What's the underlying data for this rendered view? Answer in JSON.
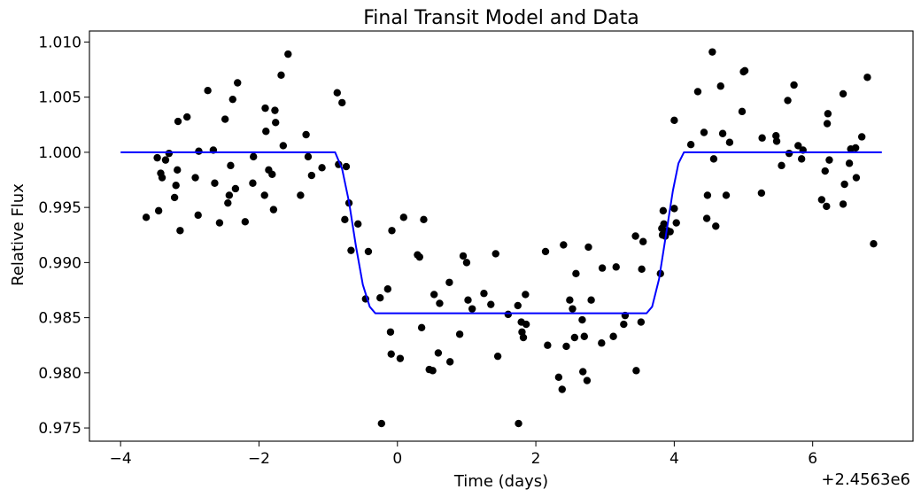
{
  "chart_data": {
    "type": "scatter",
    "title": "Final Transit Model and Data",
    "xlabel": "Time (days)",
    "ylabel": "Relative Flux",
    "offset_label": "+2.4563e6",
    "xlim": [
      -4.45,
      7.45
    ],
    "ylim": [
      0.9738,
      1.011
    ],
    "xticks": [
      -4,
      -2,
      0,
      2,
      4,
      6
    ],
    "xtick_labels": [
      "−4",
      "−2",
      "0",
      "2",
      "4",
      "6"
    ],
    "yticks": [
      0.975,
      0.98,
      0.985,
      0.99,
      0.995,
      1.0,
      1.005,
      1.01
    ],
    "ytick_labels": [
      "0.975",
      "0.980",
      "0.985",
      "0.990",
      "0.995",
      "1.000",
      "1.005",
      "1.010"
    ],
    "grid": false,
    "series": [
      {
        "type": "scatter",
        "color": "#000000",
        "points": [
          [
            -3.63,
            0.9941
          ],
          [
            -3.47,
            0.9995
          ],
          [
            -3.45,
            0.9947
          ],
          [
            -3.42,
            0.9981
          ],
          [
            -3.4,
            0.9977
          ],
          [
            -3.35,
            0.9993
          ],
          [
            -3.3,
            0.9999
          ],
          [
            -3.22,
            0.9959
          ],
          [
            -3.2,
            0.997
          ],
          [
            -3.18,
            0.9984
          ],
          [
            -3.17,
            1.0028
          ],
          [
            -3.14,
            0.9929
          ],
          [
            -3.04,
            1.0032
          ],
          [
            -2.92,
            0.9977
          ],
          [
            -2.88,
            0.9943
          ],
          [
            -2.87,
            1.0001
          ],
          [
            -2.74,
            1.0056
          ],
          [
            -2.66,
            1.0002
          ],
          [
            -2.64,
            0.9972
          ],
          [
            -2.57,
            0.9936
          ],
          [
            -2.49,
            1.003
          ],
          [
            -2.45,
            0.9954
          ],
          [
            -2.43,
            0.9961
          ],
          [
            -2.41,
            0.9988
          ],
          [
            -2.38,
            1.0048
          ],
          [
            -2.34,
            0.9967
          ],
          [
            -2.31,
            1.0063
          ],
          [
            -2.2,
            0.9937
          ],
          [
            -2.09,
            0.9972
          ],
          [
            -2.08,
            0.9996
          ],
          [
            -1.92,
            0.9961
          ],
          [
            -1.91,
            1.004
          ],
          [
            -1.9,
            1.0019
          ],
          [
            -1.86,
            0.9984
          ],
          [
            -1.81,
            0.998
          ],
          [
            -1.79,
            0.9948
          ],
          [
            -1.77,
            1.0038
          ],
          [
            -1.76,
            1.0027
          ],
          [
            -1.68,
            1.007
          ],
          [
            -1.65,
            1.0006
          ],
          [
            -1.58,
            1.0089
          ],
          [
            -1.4,
            0.9961
          ],
          [
            -1.32,
            1.0016
          ],
          [
            -1.29,
            0.9996
          ],
          [
            -1.24,
            0.9979
          ],
          [
            -1.09,
            0.9986
          ],
          [
            -0.87,
            1.0054
          ],
          [
            -0.85,
            0.9989
          ],
          [
            -0.8,
            1.0045
          ],
          [
            -0.74,
            0.9987
          ],
          [
            -0.7,
            0.9954
          ],
          [
            -0.67,
            0.9911
          ],
          [
            -0.76,
            0.9939
          ],
          [
            -0.57,
            0.9935
          ],
          [
            -0.46,
            0.9867
          ],
          [
            -0.42,
            0.991
          ],
          [
            -0.25,
            0.9868
          ],
          [
            -0.23,
            0.9754
          ],
          [
            -0.14,
            0.9876
          ],
          [
            -0.1,
            0.9837
          ],
          [
            -0.09,
            0.9817
          ],
          [
            -0.08,
            0.9929
          ],
          [
            0.04,
            0.9813
          ],
          [
            0.09,
            0.9941
          ],
          [
            0.29,
            0.9907
          ],
          [
            0.32,
            0.9905
          ],
          [
            0.35,
            0.9841
          ],
          [
            0.38,
            0.9939
          ],
          [
            0.46,
            0.9803
          ],
          [
            0.51,
            0.9802
          ],
          [
            0.53,
            0.9871
          ],
          [
            0.59,
            0.9818
          ],
          [
            0.61,
            0.9863
          ],
          [
            0.75,
            0.9882
          ],
          [
            0.76,
            0.981
          ],
          [
            0.9,
            0.9835
          ],
          [
            0.95,
            0.9906
          ],
          [
            1.0,
            0.99
          ],
          [
            1.02,
            0.9866
          ],
          [
            1.08,
            0.9858
          ],
          [
            1.25,
            0.9872
          ],
          [
            1.35,
            0.9862
          ],
          [
            1.42,
            0.9908
          ],
          [
            1.45,
            0.9815
          ],
          [
            1.6,
            0.9853
          ],
          [
            1.74,
            0.9861
          ],
          [
            1.75,
            0.9754
          ],
          [
            1.79,
            0.9846
          ],
          [
            1.8,
            0.9837
          ],
          [
            1.82,
            0.9832
          ],
          [
            1.85,
            0.9871
          ],
          [
            1.86,
            0.9844
          ],
          [
            2.14,
            0.991
          ],
          [
            2.17,
            0.9825
          ],
          [
            2.33,
            0.9796
          ],
          [
            2.38,
            0.9785
          ],
          [
            2.4,
            0.9916
          ],
          [
            2.44,
            0.9824
          ],
          [
            2.49,
            0.9866
          ],
          [
            2.53,
            0.9858
          ],
          [
            2.56,
            0.9832
          ],
          [
            2.58,
            0.989
          ],
          [
            2.67,
            0.9848
          ],
          [
            2.68,
            0.9801
          ],
          [
            2.7,
            0.9833
          ],
          [
            2.74,
            0.9793
          ],
          [
            2.76,
            0.9914
          ],
          [
            2.8,
            0.9866
          ],
          [
            2.95,
            0.9827
          ],
          [
            2.96,
            0.9895
          ],
          [
            3.12,
            0.9833
          ],
          [
            3.16,
            0.9896
          ],
          [
            3.27,
            0.9844
          ],
          [
            3.29,
            0.9852
          ],
          [
            3.44,
            0.9924
          ],
          [
            3.45,
            0.9802
          ],
          [
            3.52,
            0.9846
          ],
          [
            3.53,
            0.9894
          ],
          [
            3.55,
            0.9919
          ],
          [
            3.8,
            0.989
          ],
          [
            3.82,
            0.9931
          ],
          [
            3.83,
            0.9925
          ],
          [
            3.84,
            0.9947
          ],
          [
            3.85,
            0.9935
          ],
          [
            3.87,
            0.9924
          ],
          [
            3.9,
            0.9929
          ],
          [
            3.94,
            0.9928
          ],
          [
            4.0,
            0.9949
          ],
          [
            4.03,
            0.9936
          ],
          [
            4.0,
            1.0029
          ],
          [
            4.24,
            1.0007
          ],
          [
            4.34,
            1.0055
          ],
          [
            4.43,
            1.0018
          ],
          [
            4.48,
            0.9961
          ],
          [
            4.47,
            0.994
          ],
          [
            4.55,
            1.0091
          ],
          [
            4.57,
            0.9994
          ],
          [
            4.6,
            0.9933
          ],
          [
            4.67,
            1.006
          ],
          [
            4.7,
            1.0017
          ],
          [
            4.75,
            0.9961
          ],
          [
            4.8,
            1.0009
          ],
          [
            4.98,
            1.0037
          ],
          [
            5.0,
            1.0073
          ],
          [
            5.02,
            1.0074
          ],
          [
            5.26,
            0.9963
          ],
          [
            5.27,
            1.0013
          ],
          [
            5.47,
            1.0015
          ],
          [
            5.48,
            1.001
          ],
          [
            5.55,
            0.9988
          ],
          [
            5.64,
            1.0047
          ],
          [
            5.66,
            0.9999
          ],
          [
            5.73,
            1.0061
          ],
          [
            5.79,
            1.0006
          ],
          [
            5.84,
            0.9994
          ],
          [
            5.86,
            1.0002
          ],
          [
            6.13,
            0.9957
          ],
          [
            6.18,
            0.9983
          ],
          [
            6.2,
            0.9951
          ],
          [
            6.21,
            1.0026
          ],
          [
            6.22,
            1.0035
          ],
          [
            6.24,
            0.9993
          ],
          [
            6.44,
            0.9953
          ],
          [
            6.46,
            0.9971
          ],
          [
            6.44,
            1.0053
          ],
          [
            6.53,
            0.999
          ],
          [
            6.55,
            1.0003
          ],
          [
            6.63,
            0.9977
          ],
          [
            6.62,
            1.0004
          ],
          [
            6.71,
            1.0014
          ],
          [
            6.79,
            1.0068
          ],
          [
            6.88,
            0.9917
          ]
        ]
      },
      {
        "type": "line",
        "color": "#0000ff",
        "points": [
          [
            -4.0,
            1.0
          ],
          [
            -0.9,
            1.0
          ],
          [
            -0.8,
            0.9985
          ],
          [
            -0.7,
            0.9955
          ],
          [
            -0.6,
            0.9915
          ],
          [
            -0.5,
            0.988
          ],
          [
            -0.4,
            0.986
          ],
          [
            -0.32,
            0.9854
          ],
          [
            3.6,
            0.9854
          ],
          [
            3.68,
            0.986
          ],
          [
            3.78,
            0.9885
          ],
          [
            3.88,
            0.9925
          ],
          [
            3.98,
            0.9965
          ],
          [
            4.06,
            0.999
          ],
          [
            4.14,
            1.0
          ],
          [
            7.0,
            1.0
          ]
        ]
      }
    ]
  }
}
